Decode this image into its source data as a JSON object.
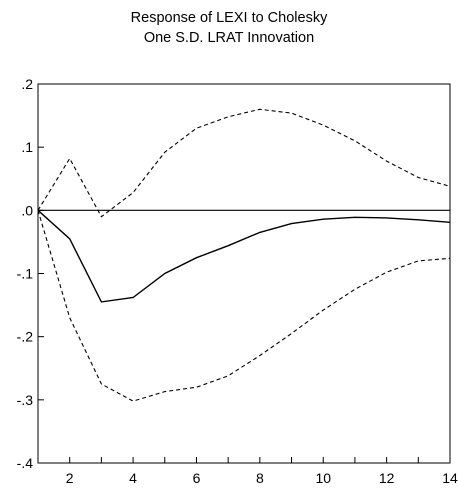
{
  "chart_data": {
    "type": "line",
    "title_lines": [
      "Response of LEXI to Cholesky",
      "One S.D. LRAT Innovation"
    ],
    "xlabel": "",
    "ylabel": "",
    "xlim": [
      1,
      14
    ],
    "ylim": [
      -0.4,
      0.2
    ],
    "x_ticks": [
      2,
      4,
      6,
      8,
      10,
      12,
      14
    ],
    "y_ticks": [
      0.2,
      0.1,
      0.0,
      -0.1,
      -0.2,
      -0.3,
      -0.4
    ],
    "y_tick_labels": [
      ".2",
      ".1",
      ".0",
      "-.1",
      "-.2",
      "-.3",
      "-.4"
    ],
    "zero_line": true,
    "grid": false,
    "legend": "none",
    "x": [
      1,
      2,
      3,
      4,
      5,
      6,
      7,
      8,
      9,
      10,
      11,
      12,
      13,
      14
    ],
    "series": [
      {
        "role": "response",
        "style": "solid",
        "values": [
          0.0,
          -0.045,
          -0.145,
          -0.138,
          -0.1,
          -0.075,
          -0.056,
          -0.035,
          -0.021,
          -0.014,
          -0.011,
          -0.012,
          -0.015,
          -0.019
        ]
      },
      {
        "role": "upper",
        "style": "dashed",
        "values": [
          0.0,
          0.082,
          -0.01,
          0.028,
          0.092,
          0.13,
          0.148,
          0.16,
          0.154,
          0.135,
          0.11,
          0.078,
          0.052,
          0.038
        ]
      },
      {
        "role": "lower",
        "style": "dashed",
        "values": [
          0.0,
          -0.17,
          -0.275,
          -0.302,
          -0.287,
          -0.28,
          -0.262,
          -0.23,
          -0.195,
          -0.158,
          -0.125,
          -0.098,
          -0.08,
          -0.076
        ]
      }
    ],
    "colors": {
      "line": "#000000",
      "axis": "#000000"
    }
  }
}
